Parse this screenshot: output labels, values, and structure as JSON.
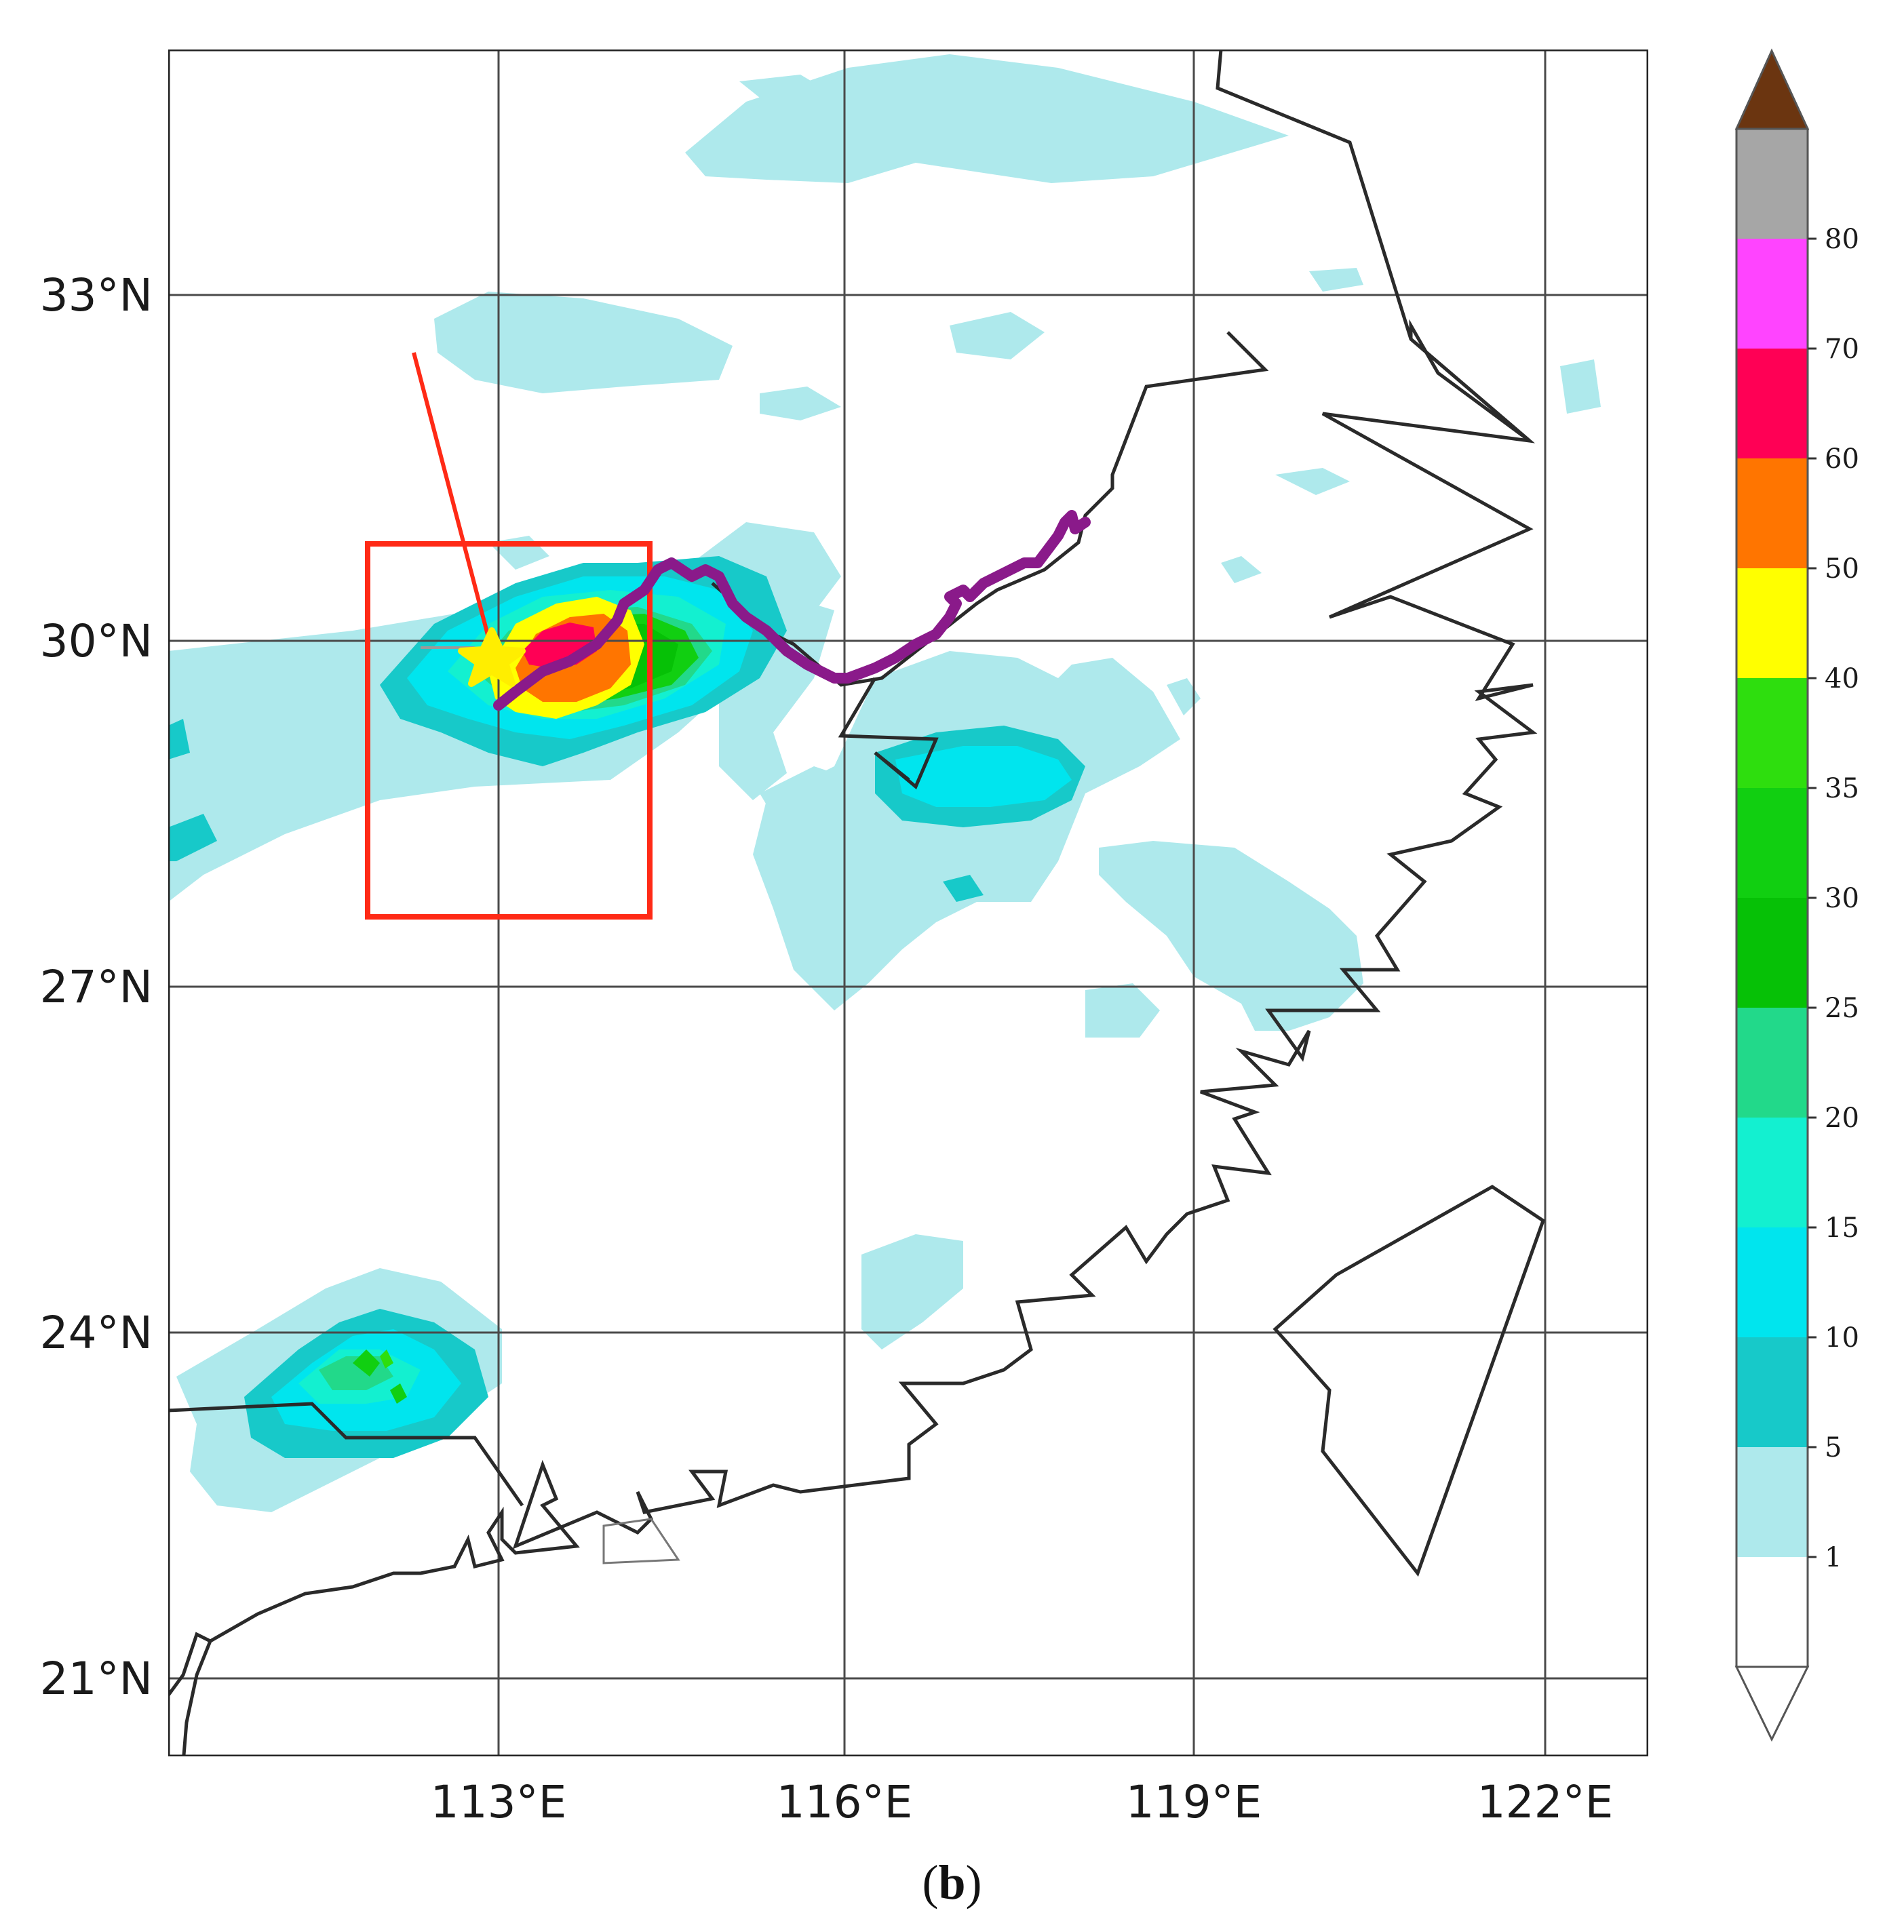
{
  "figure": {
    "caption_open": "(",
    "caption_label": "b",
    "caption_close": ")"
  },
  "map": {
    "lat_labels": [
      "33°N",
      "30°N",
      "27°N",
      "24°N",
      "21°N"
    ],
    "lon_labels": [
      "113°E",
      "116°E",
      "119°E",
      "122°E"
    ],
    "grid": true
  },
  "colorbar": {
    "tick_labels": [
      "1",
      "5",
      "10",
      "15",
      "20",
      "25",
      "30",
      "35",
      "40",
      "50",
      "60",
      "70",
      "80"
    ],
    "colors": {
      "below": "#ffffff",
      "1-5": "#aee9ec",
      "5-10": "#17c9c9",
      "10-15": "#00e5ee",
      "15-20": "#13f0d0",
      "20-25": "#22d98a",
      "25-30": "#06c106",
      "30-35": "#11cf11",
      "35-40": "#2ede0e",
      "40-50": "#ffff00",
      "50-60": "#ff7500",
      "60-70": "#ff0055",
      "70-80": "#ff44ff",
      "above-80": "#a6a6a6",
      "extend-max": "#6b3510"
    }
  },
  "overlays": {
    "box_color": "#ff2a16",
    "track_color": "#8a1a8a",
    "star_color": "#ffee00",
    "coast_color": "#2a2a2a"
  }
}
